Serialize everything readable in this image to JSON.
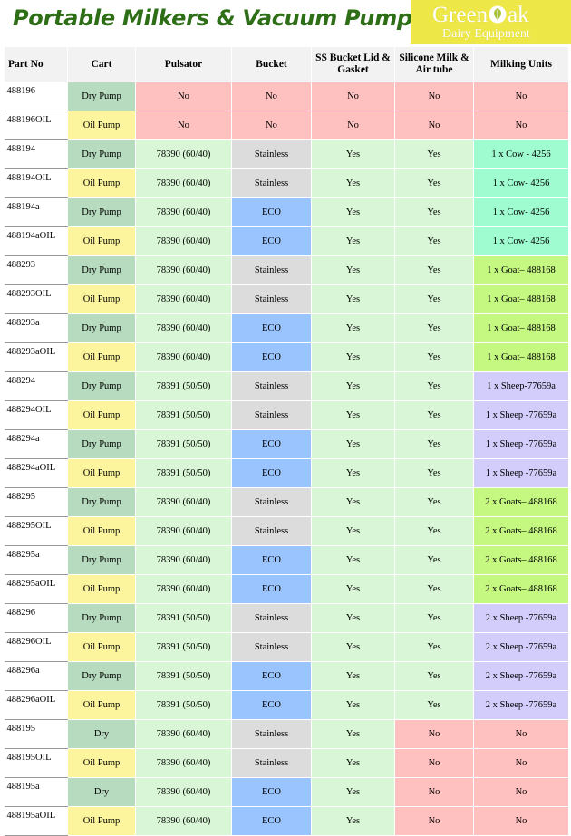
{
  "page": {
    "title": "Portable Milkers & Vacuum Pumps"
  },
  "logo": {
    "name_left": "Green",
    "name_right": "ak",
    "subtitle": "Dairy Equipment"
  },
  "colors": {
    "dry": "#b6dbbf",
    "oil": "#fdf59d",
    "green": "#d9f7d6",
    "red": "#ffc1bf",
    "stainless": "#dcdcdc",
    "eco": "#9ac4fe",
    "cow": "#9efcd0",
    "goat": "#c4f880",
    "sheep": "#d2cdfb"
  },
  "table": {
    "headers": [
      "Part No",
      "Cart",
      "Pulsator",
      "Bucket",
      "SS Bucket Lid & Gasket",
      "Silicone Milk & Air tube",
      "Milking Units"
    ],
    "rows": [
      {
        "part": "488196",
        "cart": "Dry Pump",
        "pulsator": "No",
        "bucket": "No",
        "lid": "No",
        "tube": "No",
        "units": "No",
        "c": [
          "dry",
          "red",
          "red",
          "red",
          "red",
          "red"
        ]
      },
      {
        "part": "488196OIL",
        "cart": "Oil Pump",
        "pulsator": "No",
        "bucket": "No",
        "lid": "No",
        "tube": "No",
        "units": "No",
        "c": [
          "oil",
          "red",
          "red",
          "red",
          "red",
          "red"
        ]
      },
      {
        "part": "488194",
        "cart": "Dry Pump",
        "pulsator": "78390 (60/40)",
        "bucket": "Stainless",
        "lid": "Yes",
        "tube": "Yes",
        "units": "1 x Cow - 4256",
        "c": [
          "dry",
          "green",
          "stainless",
          "green",
          "green",
          "cow"
        ]
      },
      {
        "part": "488194OIL",
        "cart": "Oil Pump",
        "pulsator": "78390 (60/40)",
        "bucket": "Stainless",
        "lid": "Yes",
        "tube": "Yes",
        "units": "1 x Cow- 4256",
        "c": [
          "oil",
          "green",
          "stainless",
          "green",
          "green",
          "cow"
        ]
      },
      {
        "part": "488194a",
        "cart": "Dry Pump",
        "pulsator": "78390 (60/40)",
        "bucket": "ECO",
        "lid": "Yes",
        "tube": "Yes",
        "units": "1 x Cow- 4256",
        "c": [
          "dry",
          "green",
          "eco",
          "green",
          "green",
          "cow"
        ]
      },
      {
        "part": "488194aOIL",
        "cart": "Oil Pump",
        "pulsator": "78390 (60/40)",
        "bucket": "ECO",
        "lid": "Yes",
        "tube": "Yes",
        "units": "1 x Cow- 4256",
        "c": [
          "oil",
          "green",
          "eco",
          "green",
          "green",
          "cow"
        ]
      },
      {
        "part": "488293",
        "cart": "Dry Pump",
        "pulsator": "78390 (60/40)",
        "bucket": "Stainless",
        "lid": "Yes",
        "tube": "Yes",
        "units": "1 x Goat– 488168",
        "c": [
          "dry",
          "green",
          "stainless",
          "green",
          "green",
          "goat"
        ]
      },
      {
        "part": "488293OIL",
        "cart": "Oil Pump",
        "pulsator": "78390 (60/40)",
        "bucket": "Stainless",
        "lid": "Yes",
        "tube": "Yes",
        "units": "1 x Goat– 488168",
        "c": [
          "oil",
          "green",
          "stainless",
          "green",
          "green",
          "goat"
        ]
      },
      {
        "part": "488293a",
        "cart": "Dry Pump",
        "pulsator": "78390 (60/40)",
        "bucket": "ECO",
        "lid": "Yes",
        "tube": "Yes",
        "units": "1 x Goat– 488168",
        "c": [
          "dry",
          "green",
          "eco",
          "green",
          "green",
          "goat"
        ]
      },
      {
        "part": "488293aOIL",
        "cart": "Oil Pump",
        "pulsator": "78390 (60/40)",
        "bucket": "ECO",
        "lid": "Yes",
        "tube": "Yes",
        "units": "1 x Goat– 488168",
        "c": [
          "oil",
          "green",
          "eco",
          "green",
          "green",
          "goat"
        ]
      },
      {
        "part": "488294",
        "cart": "Dry Pump",
        "pulsator": "78391 (50/50)",
        "bucket": "Stainless",
        "lid": "Yes",
        "tube": "Yes",
        "units": "1 x Sheep-77659a",
        "c": [
          "dry",
          "green",
          "stainless",
          "green",
          "green",
          "sheep"
        ]
      },
      {
        "part": "488294OIL",
        "cart": "Oil Pump",
        "pulsator": "78391 (50/50)",
        "bucket": "Stainless",
        "lid": "Yes",
        "tube": "Yes",
        "units": "1 x Sheep -77659a",
        "c": [
          "oil",
          "green",
          "stainless",
          "green",
          "green",
          "sheep"
        ]
      },
      {
        "part": "488294a",
        "cart": "Dry Pump",
        "pulsator": "78391 (50/50)",
        "bucket": "ECO",
        "lid": "Yes",
        "tube": "Yes",
        "units": "1 x Sheep -77659a",
        "c": [
          "dry",
          "green",
          "eco",
          "green",
          "green",
          "sheep"
        ]
      },
      {
        "part": "488294aOIL",
        "cart": "Oil Pump",
        "pulsator": "78391 (50/50)",
        "bucket": "ECO",
        "lid": "Yes",
        "tube": "Yes",
        "units": "1 x Sheep -77659a",
        "c": [
          "oil",
          "green",
          "eco",
          "green",
          "green",
          "sheep"
        ]
      },
      {
        "part": "488295",
        "cart": "Dry Pump",
        "pulsator": "78390 (60/40)",
        "bucket": "Stainless",
        "lid": "Yes",
        "tube": "Yes",
        "units": "2 x Goats– 488168",
        "c": [
          "dry",
          "green",
          "stainless",
          "green",
          "green",
          "goat"
        ]
      },
      {
        "part": "488295OIL",
        "cart": "Oil Pump",
        "pulsator": "78390 (60/40)",
        "bucket": "Stainless",
        "lid": "Yes",
        "tube": "Yes",
        "units": "2 x Goats– 488168",
        "c": [
          "oil",
          "green",
          "stainless",
          "green",
          "green",
          "goat"
        ]
      },
      {
        "part": "488295a",
        "cart": "Dry Pump",
        "pulsator": "78390 (60/40)",
        "bucket": "ECO",
        "lid": "Yes",
        "tube": "Yes",
        "units": "2 x Goats– 488168",
        "c": [
          "dry",
          "green",
          "eco",
          "green",
          "green",
          "goat"
        ]
      },
      {
        "part": "488295aOIL",
        "cart": "Oil Pump",
        "pulsator": "78390 (60/40)",
        "bucket": "ECO",
        "lid": "Yes",
        "tube": "Yes",
        "units": "2 x Goats– 488168",
        "c": [
          "oil",
          "green",
          "eco",
          "green",
          "green",
          "goat"
        ]
      },
      {
        "part": "488296",
        "cart": "Dry Pump",
        "pulsator": "78391 (50/50)",
        "bucket": "Stainless",
        "lid": "Yes",
        "tube": "Yes",
        "units": "2 x Sheep -77659a",
        "c": [
          "dry",
          "green",
          "stainless",
          "green",
          "green",
          "sheep"
        ]
      },
      {
        "part": "488296OIL",
        "cart": "Oil Pump",
        "pulsator": "78391 (50/50)",
        "bucket": "Stainless",
        "lid": "Yes",
        "tube": "Yes",
        "units": "2 x Sheep -77659a",
        "c": [
          "oil",
          "green",
          "stainless",
          "green",
          "green",
          "sheep"
        ]
      },
      {
        "part": "488296a",
        "cart": "Dry Pump",
        "pulsator": "78391 (50/50)",
        "bucket": "ECO",
        "lid": "Yes",
        "tube": "Yes",
        "units": "2 x Sheep -77659a",
        "c": [
          "dry",
          "green",
          "eco",
          "green",
          "green",
          "sheep"
        ]
      },
      {
        "part": "488296aOIL",
        "cart": "Oil Pump",
        "pulsator": "78391 (50/50)",
        "bucket": "ECO",
        "lid": "Yes",
        "tube": "Yes",
        "units": "2 x Sheep -77659a",
        "c": [
          "oil",
          "green",
          "eco",
          "green",
          "green",
          "sheep"
        ]
      },
      {
        "part": "488195",
        "cart": "Dry",
        "pulsator": "78390 (60/40)",
        "bucket": "Stainless",
        "lid": "Yes",
        "tube": "No",
        "units": "No",
        "c": [
          "dry",
          "green",
          "stainless",
          "green",
          "red",
          "red"
        ]
      },
      {
        "part": "488195OIL",
        "cart": "Oil Pump",
        "pulsator": "78390 (60/40)",
        "bucket": "Stainless",
        "lid": "Yes",
        "tube": "No",
        "units": "No",
        "c": [
          "oil",
          "green",
          "stainless",
          "green",
          "red",
          "red"
        ]
      },
      {
        "part": "488195a",
        "cart": "Dry",
        "pulsator": "78390 (60/40)",
        "bucket": "ECO",
        "lid": "Yes",
        "tube": "No",
        "units": "No",
        "c": [
          "dry",
          "green",
          "eco",
          "green",
          "red",
          "red"
        ]
      },
      {
        "part": "488195aOIL",
        "cart": "Oil Pump",
        "pulsator": "78390 (60/40)",
        "bucket": "ECO",
        "lid": "Yes",
        "tube": "No",
        "units": "No",
        "c": [
          "oil",
          "green",
          "eco",
          "green",
          "red",
          "red"
        ]
      }
    ]
  }
}
